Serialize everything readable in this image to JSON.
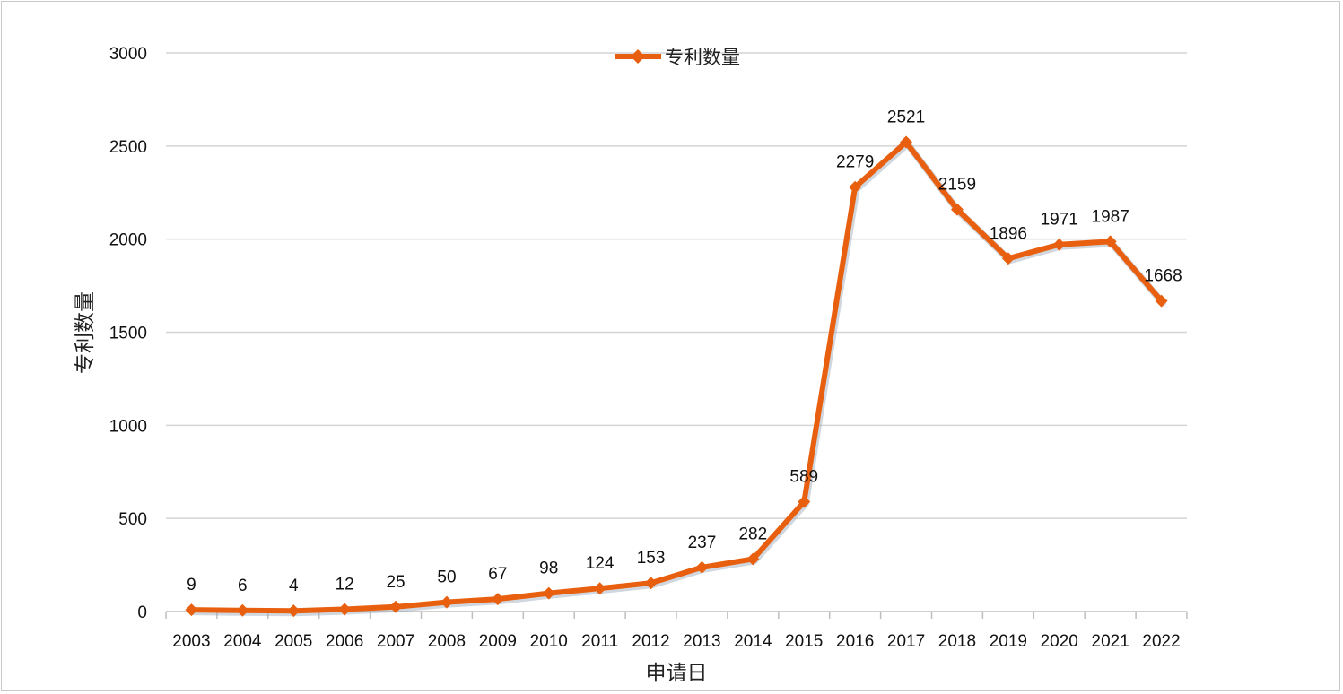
{
  "chart_data": {
    "type": "line",
    "categories": [
      "2003",
      "2004",
      "2005",
      "2006",
      "2007",
      "2008",
      "2009",
      "2010",
      "2011",
      "2012",
      "2013",
      "2014",
      "2015",
      "2016",
      "2017",
      "2018",
      "2019",
      "2020",
      "2021",
      "2022"
    ],
    "series": [
      {
        "name": "专利数量",
        "values": [
          9,
          6,
          4,
          12,
          25,
          50,
          67,
          98,
          124,
          153,
          237,
          282,
          589,
          2279,
          2521,
          2159,
          1896,
          1971,
          1987,
          1668
        ],
        "color": "#e8600f"
      }
    ],
    "xlabel": "申请日",
    "ylabel": "专利数量",
    "ylim": [
      0,
      3000
    ],
    "yticks": [
      "0",
      "500",
      "1000",
      "1500",
      "2000",
      "2500",
      "3000"
    ],
    "grid": true,
    "legend": "top-center",
    "marker": "diamond"
  }
}
